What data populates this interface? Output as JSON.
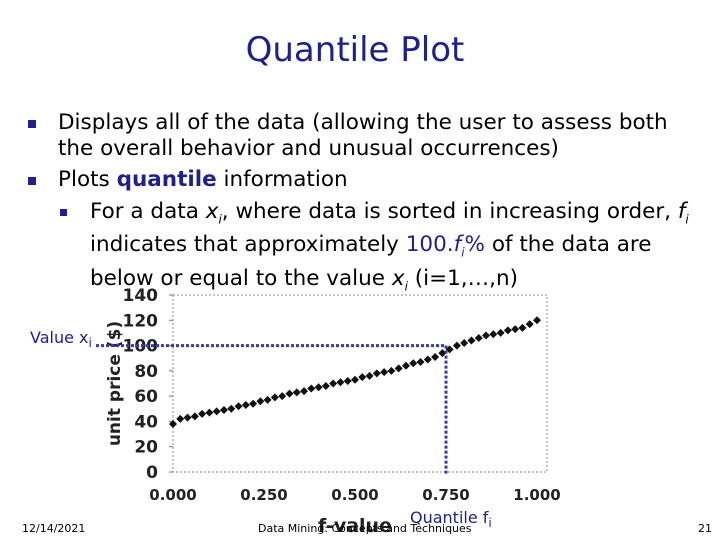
{
  "slide": {
    "title": "Quantile Plot",
    "bullet1": "Displays all of the data (allowing the user to assess both the overall behavior and unusual occurrences)",
    "bullet2_prefix": "Plots ",
    "bullet2_bold": "quantile",
    "bullet2_suffix": " information",
    "sub_a": "For a data ",
    "sub_x": "x",
    "sub_i": "i",
    "sub_b": ", where data is sorted in increasing order,",
    "sub_f": "f",
    "sub_fi": "i",
    "sub_c": " indicates that approximately ",
    "sub_pct": "100.",
    "sub_pct_f": "f",
    "sub_pct_fi": "i",
    "sub_pct_tail": "%",
    "sub_d": " of the data are below or equal to the value ",
    "sub_x2": "x",
    "sub_x2i": "i",
    "sub_e": " (i=1,…,n)",
    "value_label": "Value x",
    "value_label_sub": "i",
    "quantile_label": "Quantile f",
    "quantile_label_sub": "i",
    "footer_date": "12/14/2021",
    "footer_center": "Data Mining: Concepts and Techniques",
    "footer_page": "21"
  },
  "colors": {
    "accent": "#1f1f8f",
    "guide": "#3a3ab0"
  },
  "chart_data": {
    "type": "scatter",
    "xlabel": "f-value",
    "ylabel": "unit price ($)",
    "xlim": [
      0,
      1
    ],
    "ylim": [
      0,
      140
    ],
    "xticks": [
      "0.000",
      "0.250",
      "0.500",
      "0.750",
      "1.000"
    ],
    "yticks": [
      "0",
      "20",
      "40",
      "60",
      "80",
      "100",
      "120",
      "140"
    ],
    "highlight": {
      "x": 0.75,
      "y": 100
    },
    "series": [
      {
        "x": [
          0.0,
          0.02,
          0.04,
          0.06,
          0.08,
          0.1,
          0.12,
          0.14,
          0.16,
          0.18,
          0.2,
          0.22,
          0.24,
          0.26,
          0.28,
          0.3,
          0.32,
          0.34,
          0.36,
          0.38,
          0.4,
          0.42,
          0.44,
          0.46,
          0.48,
          0.5,
          0.52,
          0.54,
          0.56,
          0.58,
          0.6,
          0.62,
          0.64,
          0.66,
          0.68,
          0.7,
          0.72,
          0.74,
          0.76,
          0.78,
          0.8,
          0.82,
          0.84,
          0.86,
          0.88,
          0.9,
          0.92,
          0.94,
          0.96,
          0.98,
          1.0
        ],
        "values": [
          38,
          42,
          43,
          44,
          46,
          47,
          48,
          49,
          50,
          52,
          53,
          54,
          56,
          57,
          59,
          60,
          62,
          63,
          64,
          66,
          67,
          68,
          70,
          71,
          72,
          73,
          75,
          76,
          78,
          79,
          80,
          82,
          84,
          86,
          87,
          89,
          91,
          94,
          97,
          100,
          102,
          104,
          106,
          108,
          109,
          110,
          112,
          113,
          114,
          117,
          120
        ]
      }
    ]
  }
}
